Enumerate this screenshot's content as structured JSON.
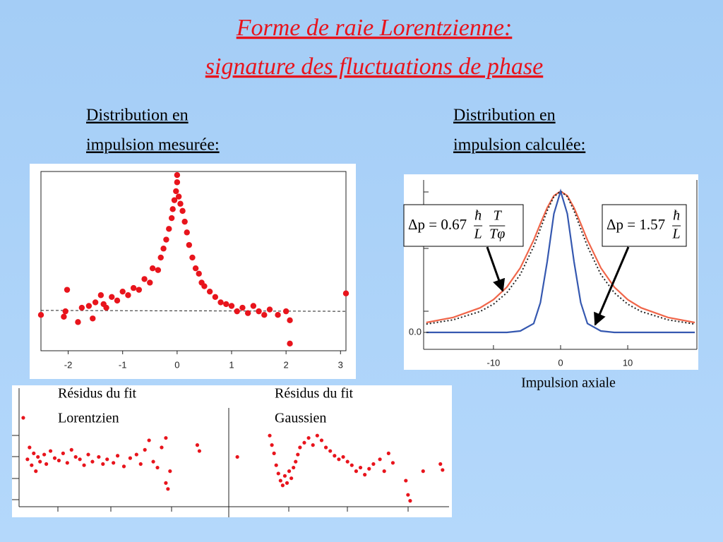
{
  "slide": {
    "title": [
      "Forme de raie Lorentzienne:",
      "signature des fluctuations de phase"
    ],
    "left_heading": [
      "Distribution en",
      "impulsion mesurée:"
    ],
    "right_heading": [
      "Distribution en",
      "impulsion calculée:"
    ]
  },
  "chart_data": [
    {
      "type": "scatter",
      "color": "#e8141c",
      "xlim": [
        -2.5,
        3.1
      ],
      "ylim": [
        0,
        1
      ],
      "xticks": [
        -2,
        -1,
        0,
        1,
        2,
        3
      ],
      "x": [
        -2.5,
        -2.08,
        -2.05,
        -2.02,
        -1.82,
        -1.75,
        -1.62,
        -1.55,
        -1.5,
        -1.4,
        -1.35,
        -1.3,
        -1.2,
        -1.1,
        -1.0,
        -0.9,
        -0.8,
        -0.7,
        -0.6,
        -0.5,
        -0.45,
        -0.35,
        -0.3,
        -0.25,
        -0.2,
        -0.15,
        -0.1,
        -0.08,
        -0.05,
        -0.02,
        0.0,
        0.0,
        0.03,
        0.06,
        0.1,
        0.14,
        0.18,
        0.22,
        0.28,
        0.34,
        0.4,
        0.45,
        0.5,
        0.6,
        0.7,
        0.8,
        0.9,
        1.0,
        1.1,
        1.2,
        1.3,
        1.4,
        1.5,
        1.6,
        1.7,
        1.85,
        2.0,
        2.07,
        2.07,
        3.1
      ],
      "y": [
        0.2,
        0.19,
        0.22,
        0.34,
        0.16,
        0.24,
        0.25,
        0.18,
        0.27,
        0.31,
        0.26,
        0.24,
        0.3,
        0.28,
        0.33,
        0.31,
        0.35,
        0.34,
        0.4,
        0.38,
        0.46,
        0.45,
        0.52,
        0.57,
        0.62,
        0.68,
        0.74,
        0.79,
        0.84,
        0.89,
        0.98,
        0.94,
        0.86,
        0.82,
        0.78,
        0.72,
        0.66,
        0.59,
        0.52,
        0.46,
        0.43,
        0.38,
        0.36,
        0.33,
        0.3,
        0.27,
        0.26,
        0.25,
        0.22,
        0.24,
        0.21,
        0.25,
        0.22,
        0.2,
        0.23,
        0.2,
        0.22,
        0.17,
        0.04,
        0.32
      ],
      "fit_line": {
        "x": [
          -2.5,
          3.1
        ],
        "values": [
          0.225,
          0.22
        ]
      }
    },
    {
      "type": "line",
      "xlim": [
        -20.4,
        20.3
      ],
      "ylim": [
        -0.12,
        1.08
      ],
      "xticks": [
        -10,
        0,
        10
      ],
      "yticks": [
        {
          "value": 0,
          "label": "0.0"
        }
      ],
      "xlabel": "Impulsion axiale",
      "x": [
        -20,
        -16,
        -12,
        -10,
        -8,
        -6,
        -4,
        -3,
        -2,
        -1,
        0,
        1,
        2,
        3,
        4,
        6,
        8,
        10,
        12,
        16,
        20
      ],
      "series": [
        {
          "color": "#f0664a",
          "style": "solid",
          "values": [
            0.07,
            0.106,
            0.174,
            0.232,
            0.321,
            0.457,
            0.654,
            0.771,
            0.883,
            0.968,
            1,
            0.968,
            0.883,
            0.771,
            0.654,
            0.457,
            0.321,
            0.232,
            0.174,
            0.106,
            0.07
          ]
        },
        {
          "color": "#222222",
          "style": "dotted",
          "values": [
            0.059,
            0.089,
            0.148,
            0.2,
            0.281,
            0.41,
            0.61,
            0.735,
            0.862,
            0.962,
            1,
            0.962,
            0.862,
            0.735,
            0.61,
            0.41,
            0.281,
            0.2,
            0.148,
            0.089,
            0.059
          ]
        },
        {
          "color": "#3558b0",
          "style": "solid",
          "values": [
            0,
            0,
            0,
            0,
            0,
            0.01,
            0.063,
            0.211,
            0.501,
            0.841,
            1,
            0.841,
            0.501,
            0.211,
            0.063,
            0.01,
            0,
            0,
            0,
            0,
            0
          ]
        }
      ],
      "annotations": [
        {
          "prefix": "Δp = 0.67",
          "fractions": [
            [
              "ħ",
              "L"
            ],
            [
              "T",
              "Tφ"
            ]
          ]
        },
        {
          "prefix": "Δp = 1.57",
          "fractions": [
            [
              "ħ",
              "L"
            ]
          ]
        }
      ]
    },
    {
      "type": "scatter",
      "color": "#e8141c",
      "xlim": [
        0,
        1
      ],
      "ylim": [
        0,
        1
      ],
      "label": [
        "Résidus du fit",
        "Lorentzien"
      ],
      "x": [
        0.02,
        0.04,
        0.05,
        0.06,
        0.07,
        0.08,
        0.09,
        0.1,
        0.12,
        0.13,
        0.15,
        0.17,
        0.19,
        0.21,
        0.23,
        0.25,
        0.27,
        0.29,
        0.31,
        0.33,
        0.35,
        0.38,
        0.4,
        0.42,
        0.45,
        0.47,
        0.5,
        0.53,
        0.56,
        0.58,
        0.6,
        0.62,
        0.64,
        0.66,
        0.68,
        0.7,
        0.72,
        0.7,
        0.71,
        0.85,
        0.86
      ],
      "y": [
        0.75,
        0.4,
        0.5,
        0.35,
        0.45,
        0.3,
        0.42,
        0.38,
        0.44,
        0.36,
        0.47,
        0.41,
        0.39,
        0.45,
        0.37,
        0.48,
        0.42,
        0.4,
        0.35,
        0.44,
        0.38,
        0.42,
        0.36,
        0.4,
        0.37,
        0.43,
        0.34,
        0.41,
        0.44,
        0.36,
        0.48,
        0.56,
        0.38,
        0.33,
        0.5,
        0.58,
        0.3,
        0.2,
        0.15,
        0.52,
        0.47
      ]
    },
    {
      "type": "scatter",
      "color": "#e8141c",
      "xlim": [
        0,
        1
      ],
      "ylim": [
        0,
        1
      ],
      "label": [
        "Résidus du fit",
        "Gaussien"
      ],
      "x": [
        0.02,
        0.17,
        0.18,
        0.19,
        0.2,
        0.21,
        0.22,
        0.23,
        0.24,
        0.25,
        0.26,
        0.27,
        0.28,
        0.29,
        0.3,
        0.31,
        0.33,
        0.35,
        0.37,
        0.39,
        0.41,
        0.43,
        0.45,
        0.47,
        0.49,
        0.51,
        0.53,
        0.55,
        0.57,
        0.59,
        0.61,
        0.63,
        0.65,
        0.68,
        0.7,
        0.72,
        0.74,
        0.8,
        0.81,
        0.82,
        0.88,
        0.96,
        0.97
      ],
      "y": [
        0.42,
        0.6,
        0.52,
        0.45,
        0.35,
        0.28,
        0.22,
        0.18,
        0.26,
        0.2,
        0.3,
        0.24,
        0.33,
        0.38,
        0.44,
        0.5,
        0.54,
        0.58,
        0.52,
        0.6,
        0.56,
        0.5,
        0.47,
        0.43,
        0.4,
        0.42,
        0.38,
        0.35,
        0.3,
        0.33,
        0.27,
        0.32,
        0.36,
        0.4,
        0.3,
        0.45,
        0.37,
        0.22,
        0.1,
        0.05,
        0.3,
        0.36,
        0.31
      ]
    }
  ]
}
